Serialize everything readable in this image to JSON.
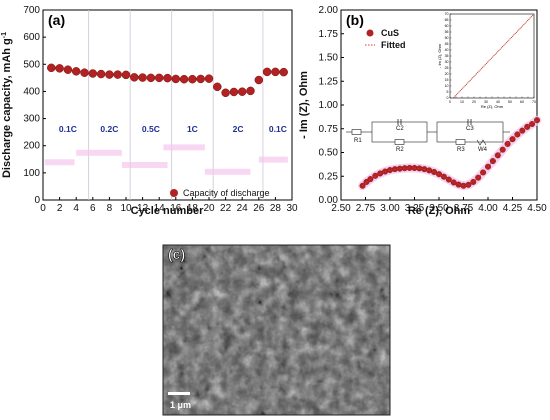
{
  "panels": {
    "a": {
      "label": "(a)"
    },
    "b": {
      "label": "(b)"
    },
    "c": {
      "label": "(c)"
    }
  },
  "sem": {
    "scale_bar_label": "1 μm"
  },
  "chart_data": [
    {
      "type": "scatter",
      "title": "",
      "xlabel": "Cycle number",
      "ylabel": "Discharge capacity, mAh g",
      "ylabel_superscript": "-1",
      "xlim": [
        0,
        30
      ],
      "ylim": [
        0,
        700
      ],
      "xticks": [
        0,
        2,
        4,
        6,
        8,
        10,
        12,
        14,
        16,
        18,
        20,
        22,
        24,
        26,
        28,
        30
      ],
      "yticks": [
        0,
        100,
        200,
        300,
        400,
        500,
        600,
        700
      ],
      "grid": false,
      "legend_position": "bottom-right",
      "segment_dividers": [
        5.5,
        10.5,
        15.5,
        20.5,
        26.5
      ],
      "rate_labels": [
        {
          "text": "0.1C",
          "x": 3
        },
        {
          "text": "0.2C",
          "x": 8
        },
        {
          "text": "0.5C",
          "x": 13
        },
        {
          "text": "1C",
          "x": 18
        },
        {
          "text": "2C",
          "x": 23.5
        },
        {
          "text": "0.1C",
          "x": 28.3
        }
      ],
      "series": [
        {
          "name": "Capacity of discharge",
          "color": "#b22222",
          "x": [
            1,
            2,
            3,
            4,
            5,
            6,
            7,
            8,
            9,
            10,
            11,
            12,
            13,
            14,
            15,
            16,
            17,
            18,
            19,
            20,
            21,
            22,
            23,
            24,
            25,
            26,
            27,
            28,
            29
          ],
          "y": [
            487,
            485,
            480,
            474,
            469,
            466,
            464,
            462,
            462,
            461,
            452,
            451,
            450,
            450,
            449,
            446,
            445,
            445,
            446,
            447,
            417,
            395,
            398,
            399,
            402,
            442,
            472,
            472,
            471
          ]
        }
      ]
    },
    {
      "type": "scatter",
      "title": "",
      "xlabel": "Re (Z), Ohm",
      "ylabel": "- Im (Z), Ohm",
      "xlim": [
        2.5,
        4.5
      ],
      "ylim": [
        0,
        2
      ],
      "xticks": [
        2.5,
        2.75,
        3.0,
        3.25,
        3.5,
        3.75,
        4.0,
        4.25,
        4.5
      ],
      "yticks": [
        0,
        0.25,
        0.5,
        0.75,
        1.0,
        1.25,
        1.5,
        1.75,
        2.0
      ],
      "legend_position": "top-left",
      "series": [
        {
          "name": "CuS",
          "color": "#b22222",
          "x": [
            2.72,
            2.76,
            2.8,
            2.85,
            2.9,
            2.95,
            3.0,
            3.05,
            3.1,
            3.15,
            3.2,
            3.25,
            3.3,
            3.35,
            3.4,
            3.45,
            3.5,
            3.55,
            3.6,
            3.65,
            3.7,
            3.75,
            3.8,
            3.85,
            3.9,
            3.95,
            4.0,
            4.05,
            4.1,
            4.15,
            4.2,
            4.25,
            4.3,
            4.35,
            4.4,
            4.45,
            4.5
          ],
          "y": [
            0.15,
            0.19,
            0.22,
            0.255,
            0.28,
            0.3,
            0.315,
            0.325,
            0.33,
            0.335,
            0.338,
            0.337,
            0.333,
            0.325,
            0.312,
            0.295,
            0.272,
            0.245,
            0.215,
            0.185,
            0.162,
            0.15,
            0.16,
            0.19,
            0.235,
            0.29,
            0.35,
            0.41,
            0.47,
            0.53,
            0.59,
            0.64,
            0.69,
            0.73,
            0.77,
            0.8,
            0.84
          ]
        },
        {
          "name": "Fitted",
          "color": "#d33",
          "x": [
            2.72,
            2.8,
            2.9,
            3.0,
            3.1,
            3.2,
            3.3,
            3.4,
            3.5,
            3.6,
            3.7,
            3.75,
            3.8,
            3.9,
            4.0,
            4.1,
            4.2,
            4.3,
            4.4,
            4.5
          ],
          "y": [
            0.15,
            0.22,
            0.28,
            0.315,
            0.33,
            0.338,
            0.333,
            0.312,
            0.272,
            0.215,
            0.162,
            0.15,
            0.16,
            0.235,
            0.35,
            0.47,
            0.59,
            0.69,
            0.77,
            0.84
          ]
        }
      ],
      "inset": {
        "xlabel": "Re (Z), Ohm",
        "ylabel": "- Im (Z), Ohm",
        "xlim": [
          0,
          70
        ],
        "ylim": [
          0,
          70
        ],
        "xticks": [
          0,
          5,
          10,
          15,
          20,
          25,
          30,
          35,
          40,
          45,
          50,
          55,
          60,
          65,
          70
        ],
        "yticks": [
          0,
          5,
          10,
          15,
          20,
          25,
          30,
          35,
          40,
          45,
          50,
          55,
          60,
          65,
          70
        ],
        "line": {
          "x": [
            3,
            70
          ],
          "y": [
            0.3,
            70
          ]
        }
      },
      "circuit": {
        "components": [
          "R1",
          "C2",
          "R2",
          "C3",
          "R3",
          "W4"
        ]
      }
    }
  ]
}
